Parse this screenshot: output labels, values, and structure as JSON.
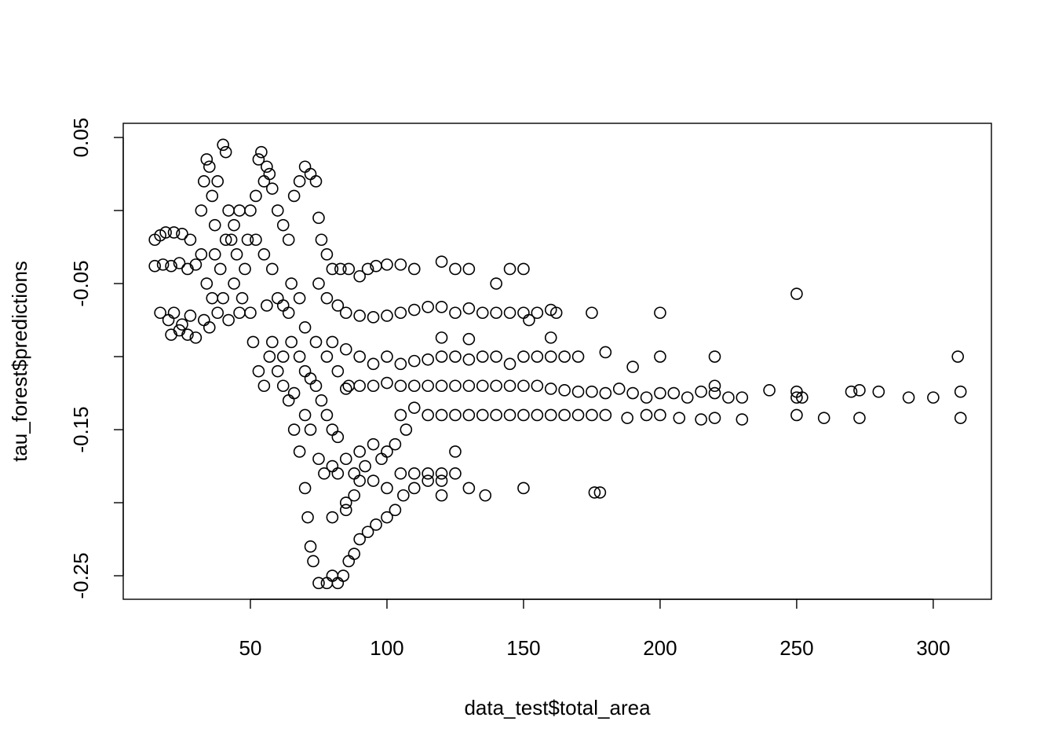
{
  "chart_data": {
    "type": "scatter",
    "x_label": "data_test$total_area",
    "y_label": "tau_forest$predictions",
    "color": "#000000",
    "marker": "open-circle",
    "grid": false,
    "xlim": [
      3.45,
      321.3
    ],
    "ylim": [
      -0.2661,
      0.0597
    ],
    "xticks": [
      50,
      100,
      150,
      200,
      250,
      300
    ],
    "yticks": [
      -0.25,
      -0.15,
      -0.05,
      0.05
    ],
    "yminor_ticks": [
      -0.2,
      -0.1,
      0
    ],
    "x": [
      15,
      17,
      19,
      22,
      25,
      28,
      15,
      18,
      21,
      24,
      27,
      30,
      17,
      20,
      22,
      25,
      28,
      21,
      24,
      27,
      30,
      32,
      33,
      34,
      35,
      36,
      37,
      38,
      40,
      41,
      42,
      43,
      39,
      36,
      34,
      32,
      38,
      42,
      44,
      45,
      46,
      47,
      48,
      33,
      35,
      40,
      44,
      37,
      41,
      46,
      49,
      50,
      52,
      53,
      54,
      55,
      56,
      57,
      58,
      60,
      52,
      55,
      58,
      51,
      53,
      55,
      57,
      60,
      50,
      62,
      64,
      66,
      68,
      70,
      72,
      74,
      65,
      68,
      62,
      64,
      66,
      68,
      70,
      71,
      72,
      73,
      75,
      78,
      80,
      82,
      84,
      86,
      88,
      90,
      93,
      96,
      100,
      103,
      106,
      110,
      115,
      120,
      75,
      76,
      78,
      80,
      83,
      86,
      90,
      93,
      96,
      100,
      105,
      110,
      120,
      125,
      130,
      145,
      150,
      140,
      75,
      78,
      82,
      85,
      90,
      95,
      100,
      105,
      110,
      115,
      120,
      125,
      130,
      135,
      140,
      145,
      150,
      155,
      160,
      162,
      175,
      200,
      152,
      250,
      80,
      85,
      90,
      95,
      100,
      105,
      110,
      115,
      120,
      125,
      130,
      135,
      140,
      145,
      150,
      155,
      160,
      165,
      170,
      180,
      190,
      200,
      220,
      309,
      120,
      130,
      160,
      85,
      90,
      95,
      100,
      105,
      110,
      115,
      120,
      125,
      130,
      135,
      140,
      145,
      150,
      155,
      160,
      165,
      170,
      175,
      180,
      185,
      190,
      195,
      200,
      205,
      210,
      215,
      220,
      225,
      230,
      240,
      250,
      252,
      270,
      273,
      280,
      291,
      300,
      310,
      250,
      220,
      105,
      110,
      115,
      120,
      125,
      130,
      135,
      140,
      145,
      150,
      155,
      160,
      165,
      170,
      175,
      180,
      188,
      195,
      200,
      207,
      215,
      220,
      230,
      250,
      260,
      273,
      310,
      75,
      80,
      85,
      90,
      95,
      100,
      103,
      107,
      77,
      82,
      88,
      92,
      98,
      125,
      85,
      88,
      90,
      95,
      100,
      105,
      110,
      115,
      120,
      125,
      120,
      130,
      136,
      150,
      176,
      178,
      80,
      85,
      60,
      62,
      65,
      68,
      70,
      72,
      74,
      76,
      78,
      80,
      82,
      70,
      72,
      66,
      62,
      58,
      56,
      64,
      70,
      74,
      78,
      82,
      86
    ],
    "values": [
      -0.02,
      -0.017,
      -0.015,
      -0.015,
      -0.016,
      -0.02,
      -0.038,
      -0.037,
      -0.038,
      -0.036,
      -0.04,
      -0.037,
      -0.07,
      -0.075,
      -0.07,
      -0.078,
      -0.072,
      -0.085,
      -0.082,
      -0.085,
      -0.087,
      0,
      0.02,
      0.035,
      0.03,
      0.01,
      -0.01,
      0.02,
      0.045,
      0.04,
      0,
      -0.02,
      -0.04,
      -0.06,
      -0.05,
      -0.03,
      -0.07,
      -0.075,
      -0.05,
      -0.03,
      0,
      -0.06,
      -0.04,
      -0.075,
      -0.08,
      -0.06,
      -0.01,
      -0.03,
      -0.02,
      -0.07,
      -0.02,
      0,
      0.01,
      0.035,
      0.04,
      0.02,
      0.03,
      0.025,
      0.015,
      0,
      -0.02,
      -0.03,
      -0.04,
      -0.09,
      -0.11,
      -0.12,
      -0.1,
      -0.11,
      -0.07,
      -0.01,
      -0.02,
      0.01,
      0.02,
      0.03,
      0.025,
      0.02,
      -0.05,
      -0.06,
      -0.12,
      -0.13,
      -0.15,
      -0.165,
      -0.19,
      -0.21,
      -0.23,
      -0.24,
      -0.255,
      -0.255,
      -0.25,
      -0.255,
      -0.25,
      -0.24,
      -0.235,
      -0.225,
      -0.22,
      -0.215,
      -0.21,
      -0.205,
      -0.195,
      -0.19,
      -0.185,
      -0.185,
      -0.005,
      -0.02,
      -0.03,
      -0.04,
      -0.04,
      -0.04,
      -0.045,
      -0.04,
      -0.038,
      -0.037,
      -0.037,
      -0.04,
      -0.035,
      -0.04,
      -0.04,
      -0.04,
      -0.04,
      -0.05,
      -0.05,
      -0.06,
      -0.065,
      -0.07,
      -0.072,
      -0.073,
      -0.072,
      -0.07,
      -0.068,
      -0.066,
      -0.066,
      -0.07,
      -0.067,
      -0.07,
      -0.07,
      -0.07,
      -0.07,
      -0.07,
      -0.068,
      -0.07,
      -0.07,
      -0.07,
      -0.075,
      -0.057,
      -0.09,
      -0.095,
      -0.1,
      -0.105,
      -0.1,
      -0.105,
      -0.103,
      -0.102,
      -0.1,
      -0.1,
      -0.102,
      -0.1,
      -0.1,
      -0.105,
      -0.1,
      -0.1,
      -0.1,
      -0.1,
      -0.1,
      -0.097,
      -0.107,
      -0.1,
      -0.1,
      -0.1,
      -0.087,
      -0.088,
      -0.087,
      -0.122,
      -0.12,
      -0.12,
      -0.118,
      -0.12,
      -0.12,
      -0.12,
      -0.12,
      -0.12,
      -0.12,
      -0.12,
      -0.12,
      -0.12,
      -0.12,
      -0.12,
      -0.122,
      -0.123,
      -0.124,
      -0.124,
      -0.125,
      -0.122,
      -0.125,
      -0.128,
      -0.125,
      -0.125,
      -0.128,
      -0.124,
      -0.12,
      -0.128,
      -0.128,
      -0.123,
      -0.124,
      -0.128,
      -0.124,
      -0.123,
      -0.124,
      -0.128,
      -0.128,
      -0.124,
      -0.128,
      -0.125,
      -0.14,
      -0.135,
      -0.14,
      -0.14,
      -0.14,
      -0.14,
      -0.14,
      -0.14,
      -0.14,
      -0.14,
      -0.14,
      -0.14,
      -0.14,
      -0.14,
      -0.14,
      -0.14,
      -0.142,
      -0.14,
      -0.14,
      -0.142,
      -0.143,
      -0.142,
      -0.143,
      -0.14,
      -0.142,
      -0.142,
      -0.142,
      -0.17,
      -0.175,
      -0.17,
      -0.165,
      -0.16,
      -0.165,
      -0.16,
      -0.15,
      -0.18,
      -0.18,
      -0.18,
      -0.175,
      -0.17,
      -0.165,
      -0.2,
      -0.195,
      -0.185,
      -0.185,
      -0.19,
      -0.18,
      -0.18,
      -0.18,
      -0.18,
      -0.18,
      -0.195,
      -0.19,
      -0.195,
      -0.19,
      -0.193,
      -0.193,
      -0.21,
      -0.205,
      -0.06,
      -0.065,
      -0.09,
      -0.1,
      -0.11,
      -0.115,
      -0.12,
      -0.13,
      -0.14,
      -0.15,
      -0.155,
      -0.14,
      -0.15,
      -0.125,
      -0.1,
      -0.09,
      -0.065,
      -0.07,
      -0.08,
      -0.09,
      -0.1,
      -0.11,
      -0.12
    ]
  }
}
